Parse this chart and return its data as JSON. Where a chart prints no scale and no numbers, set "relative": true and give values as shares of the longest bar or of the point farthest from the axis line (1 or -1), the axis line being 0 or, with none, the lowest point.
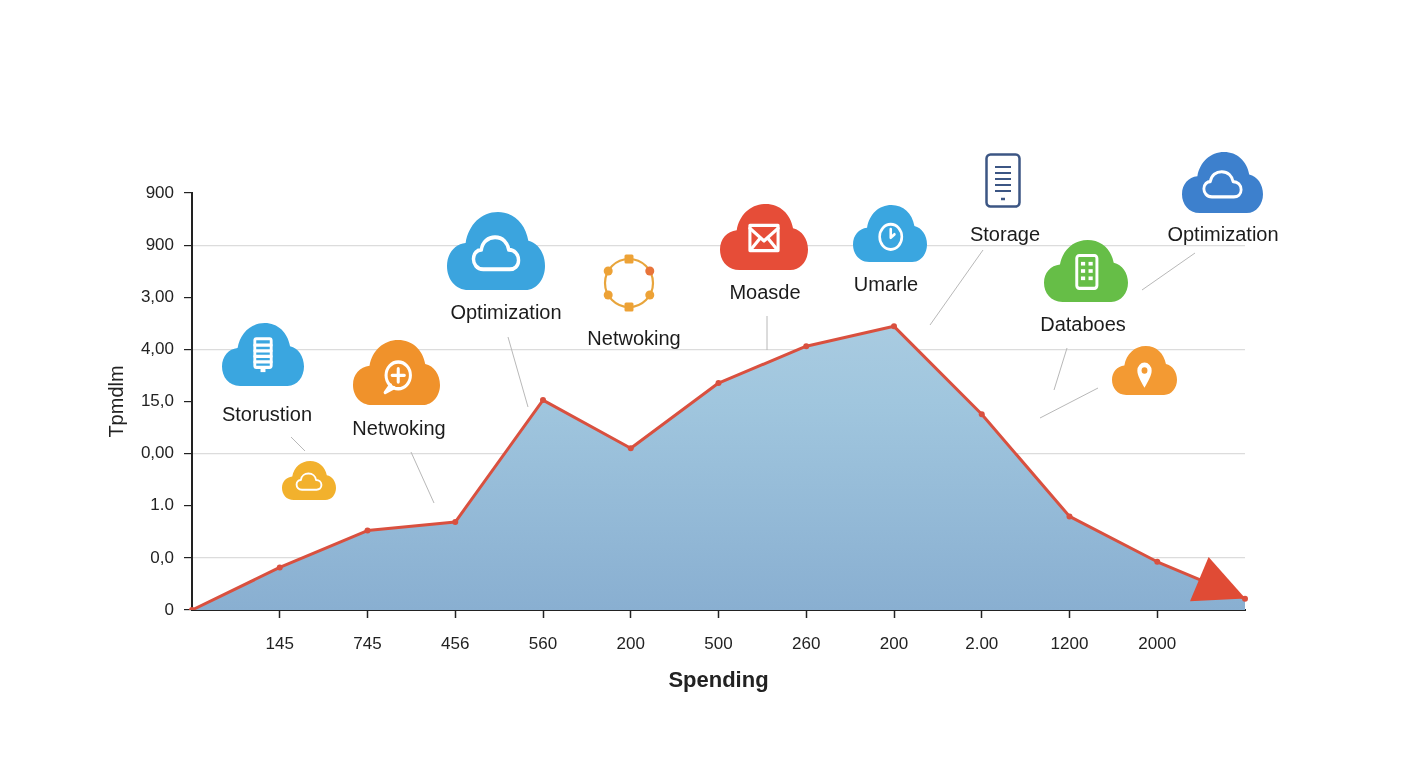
{
  "chart_data": {
    "type": "area",
    "xlabel": "Spending",
    "ylabel": "Tpmdlm",
    "categories": [
      null,
      "145",
      "745",
      "456",
      "560",
      "200",
      "500",
      "260",
      "200",
      "2.00",
      "1200",
      "2000",
      null
    ],
    "values": [
      0,
      0.15,
      0.28,
      0.31,
      0.74,
      0.57,
      0.8,
      0.93,
      1,
      0.69,
      0.33,
      0.17,
      0.04
    ],
    "relative": true,
    "color": "#a0c6de",
    "marker": "circle",
    "grid": "y",
    "annotations": [
      "Storustion",
      "Netwoking",
      "Optimization",
      "Netwoking",
      "Moasde",
      "Umarle",
      "Storage",
      "Optimization",
      "Databoes",
      "900",
      "900",
      "3,00",
      "4,00",
      "15,0",
      "0,00",
      "1.0",
      "0,0",
      "0"
    ]
  }
}
